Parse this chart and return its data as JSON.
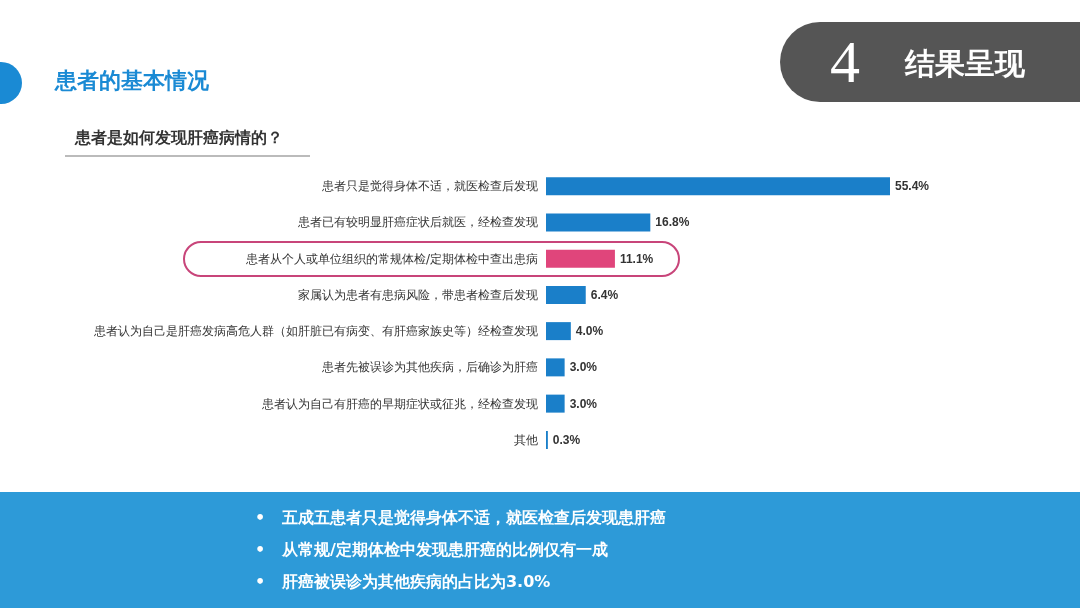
{
  "chart_data": {
    "type": "bar",
    "orientation": "horizontal",
    "title": "患者的基本情况",
    "subtitle": "患者是如何发现肝癌病情的？",
    "categories": [
      "患者只是觉得身体不适，就医检查后发现",
      "患者已有较明显肝癌症状后就医，经检查发现",
      "患者从个人或单位组织的常规体检/定期体检中查出患病",
      "家属认为患者有患病风险，带患者检查后发现",
      "患者认为自己是肝癌发病高危人群（如肝脏已有病变、有肝癌家族史等）经检查发现",
      "患者先被误诊为其他疾病，后确诊为肝癌",
      "患者认为自己有肝癌的早期症状或征兆，经检查发现",
      "其他"
    ],
    "values": [
      55.4,
      16.8,
      11.1,
      6.4,
      4.0,
      3.0,
      3.0,
      0.3
    ],
    "value_labels": [
      "55.4%",
      "16.8%",
      "11.1%",
      "6.4%",
      "4.0%",
      "3.0%",
      "3.0%",
      "0.3%"
    ],
    "colors": [
      "#1a7fc9",
      "#1a7fc9",
      "#e0457b",
      "#1a7fc9",
      "#1a7fc9",
      "#1a7fc9",
      "#1a7fc9",
      "#1a7fc9"
    ],
    "annotations": [
      "4",
      "结果呈现",
      "•   五成五患者只是觉得身体不适，就医检查后发现患肝癌",
      "•   从常规/定期体检中发现患肝癌的比例仅有一成",
      "•   肝癌被误诊为其他疾病的占比为3.0%"
    ]
  }
}
